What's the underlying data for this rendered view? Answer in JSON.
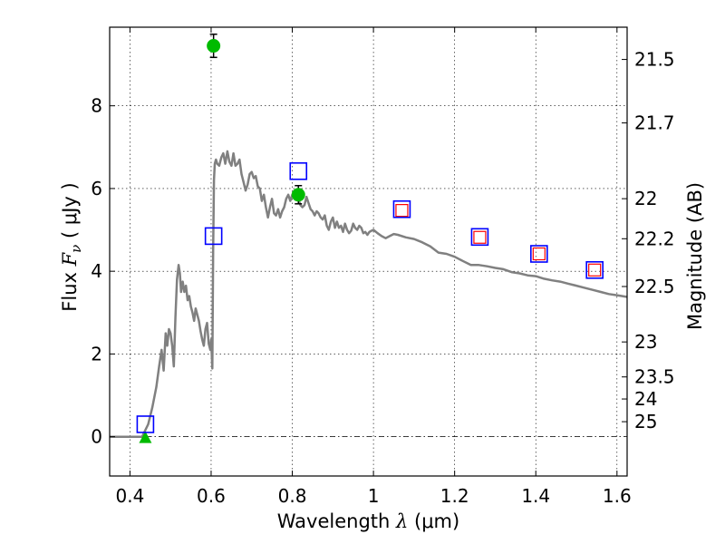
{
  "chart_data": {
    "type": "scatter",
    "xlabel": {
      "prefix": "Wavelength  ",
      "symbol": "λ",
      "unit": " (μm)"
    },
    "ylabel": {
      "prefix": "Flux  ",
      "symbol": "F",
      "subscript": "ν",
      "unit": "  ( μJy )"
    },
    "y2label": "Magnitude (AB)",
    "xlim": [
      0.35,
      1.625
    ],
    "ylim": [
      -0.95,
      9.9
    ],
    "grid": true,
    "x_ticks": [
      {
        "value": 0.4,
        "label": "0.4"
      },
      {
        "value": 0.6,
        "label": "0.6"
      },
      {
        "value": 0.8,
        "label": "0.8"
      },
      {
        "value": 1.0,
        "label": "1"
      },
      {
        "value": 1.2,
        "label": "1.2"
      },
      {
        "value": 1.4,
        "label": "1.4"
      },
      {
        "value": 1.6,
        "label": "1.6"
      }
    ],
    "y_ticks": [
      {
        "value": 0,
        "label": "0"
      },
      {
        "value": 2,
        "label": "2"
      },
      {
        "value": 4,
        "label": "4"
      },
      {
        "value": 6,
        "label": "6"
      },
      {
        "value": 8,
        "label": "8"
      }
    ],
    "y2_ticks": [
      {
        "mag": 21.5,
        "label": "21.5"
      },
      {
        "mag": 21.7,
        "label": "21.7"
      },
      {
        "mag": 22,
        "label": "22"
      },
      {
        "mag": 22.2,
        "label": "22.2"
      },
      {
        "mag": 22.5,
        "label": "22.5"
      },
      {
        "mag": 23,
        "label": "23"
      },
      {
        "mag": 23.5,
        "label": "23.5"
      },
      {
        "mag": 24,
        "label": "24"
      },
      {
        "mag": 25,
        "label": "25"
      }
    ],
    "zero_line": 0,
    "series": [
      {
        "kind": "model",
        "color": "#808080",
        "x": [
          0.35,
          0.43,
          0.445,
          0.455,
          0.465,
          0.472,
          0.478,
          0.483,
          0.488,
          0.492,
          0.496,
          0.5,
          0.504,
          0.508,
          0.512,
          0.516,
          0.52,
          0.523,
          0.526,
          0.53,
          0.534,
          0.538,
          0.542,
          0.546,
          0.55,
          0.554,
          0.558,
          0.562,
          0.566,
          0.57,
          0.574,
          0.578,
          0.582,
          0.586,
          0.59,
          0.594,
          0.598,
          0.6,
          0.603,
          0.605,
          0.607,
          0.609,
          0.612,
          0.615,
          0.62,
          0.625,
          0.63,
          0.635,
          0.64,
          0.645,
          0.65,
          0.655,
          0.66,
          0.665,
          0.67,
          0.675,
          0.68,
          0.685,
          0.69,
          0.695,
          0.7,
          0.705,
          0.71,
          0.715,
          0.72,
          0.725,
          0.73,
          0.735,
          0.74,
          0.745,
          0.75,
          0.755,
          0.76,
          0.765,
          0.77,
          0.775,
          0.78,
          0.785,
          0.79,
          0.795,
          0.8,
          0.805,
          0.81,
          0.815,
          0.82,
          0.825,
          0.83,
          0.835,
          0.84,
          0.845,
          0.85,
          0.855,
          0.86,
          0.865,
          0.87,
          0.875,
          0.88,
          0.885,
          0.89,
          0.895,
          0.9,
          0.905,
          0.91,
          0.915,
          0.92,
          0.925,
          0.93,
          0.935,
          0.94,
          0.945,
          0.95,
          0.955,
          0.96,
          0.965,
          0.97,
          0.975,
          0.98,
          0.985,
          0.99,
          0.995,
          1.0,
          1.01,
          1.02,
          1.03,
          1.04,
          1.05,
          1.06,
          1.08,
          1.1,
          1.12,
          1.14,
          1.16,
          1.18,
          1.2,
          1.22,
          1.24,
          1.26,
          1.28,
          1.3,
          1.32,
          1.34,
          1.36,
          1.38,
          1.4,
          1.42,
          1.44,
          1.46,
          1.48,
          1.5,
          1.52,
          1.54,
          1.56,
          1.58,
          1.6,
          1.625
        ],
        "y": [
          0.0,
          0.0,
          0.3,
          0.7,
          1.2,
          1.7,
          2.1,
          1.6,
          2.5,
          2.2,
          2.6,
          2.5,
          2.2,
          1.7,
          2.9,
          3.8,
          4.15,
          3.95,
          3.5,
          3.75,
          3.5,
          3.65,
          3.3,
          3.4,
          3.15,
          3.0,
          2.8,
          3.1,
          2.95,
          2.8,
          2.55,
          2.35,
          2.2,
          2.6,
          2.75,
          2.25,
          2.1,
          2.35,
          1.65,
          4.5,
          6.2,
          6.6,
          6.7,
          6.6,
          6.55,
          6.75,
          6.85,
          6.6,
          6.9,
          6.65,
          6.55,
          6.85,
          6.55,
          6.6,
          6.7,
          6.35,
          6.15,
          5.95,
          6.1,
          6.35,
          6.4,
          6.25,
          6.3,
          6.05,
          6.0,
          5.7,
          5.85,
          5.55,
          5.3,
          5.55,
          5.75,
          5.4,
          5.35,
          5.5,
          5.3,
          5.45,
          5.55,
          5.75,
          5.85,
          5.7,
          5.85,
          5.9,
          5.85,
          5.75,
          5.6,
          5.55,
          5.6,
          5.8,
          5.65,
          5.5,
          5.45,
          5.35,
          5.45,
          5.4,
          5.3,
          5.25,
          5.35,
          5.1,
          5.0,
          5.2,
          5.3,
          5.05,
          5.2,
          5.05,
          5.1,
          4.95,
          5.15,
          5.0,
          4.92,
          4.98,
          5.15,
          5.05,
          5.0,
          5.1,
          5.05,
          4.92,
          4.95,
          4.88,
          4.95,
          4.98,
          5.0,
          4.92,
          4.85,
          4.8,
          4.85,
          4.9,
          4.88,
          4.82,
          4.78,
          4.7,
          4.6,
          4.45,
          4.42,
          4.35,
          4.25,
          4.15,
          4.15,
          4.12,
          4.08,
          4.05,
          3.98,
          3.95,
          3.9,
          3.88,
          3.82,
          3.78,
          3.75,
          3.7,
          3.65,
          3.6,
          3.55,
          3.5,
          3.45,
          3.42,
          3.38
        ]
      },
      {
        "kind": "detection",
        "marker": "circle",
        "color": "#00bb00",
        "points": [
          {
            "x": 0.606,
            "y": 9.45,
            "yerr": 0.28
          },
          {
            "x": 0.815,
            "y": 5.85,
            "yerr": 0.22
          }
        ]
      },
      {
        "kind": "upper_limit",
        "marker": "triangle",
        "color": "#00bb00",
        "points": [
          {
            "x": 0.438,
            "y": -0.02
          }
        ]
      },
      {
        "kind": "model_photometry",
        "marker": "open-square",
        "color": "#0000ff",
        "points": [
          {
            "x": 0.438,
            "y": 0.3
          },
          {
            "x": 0.606,
            "y": 4.85
          },
          {
            "x": 0.815,
            "y": 6.42
          },
          {
            "x": 1.07,
            "y": 5.5
          },
          {
            "x": 1.262,
            "y": 4.83
          },
          {
            "x": 1.408,
            "y": 4.42
          },
          {
            "x": 1.545,
            "y": 4.03
          }
        ]
      },
      {
        "kind": "observed_nir",
        "marker": "open-square",
        "color": "#ff0000",
        "points": [
          {
            "x": 1.07,
            "y": 5.47
          },
          {
            "x": 1.262,
            "y": 4.82
          },
          {
            "x": 1.408,
            "y": 4.42
          },
          {
            "x": 1.545,
            "y": 4.03
          }
        ]
      }
    ]
  }
}
